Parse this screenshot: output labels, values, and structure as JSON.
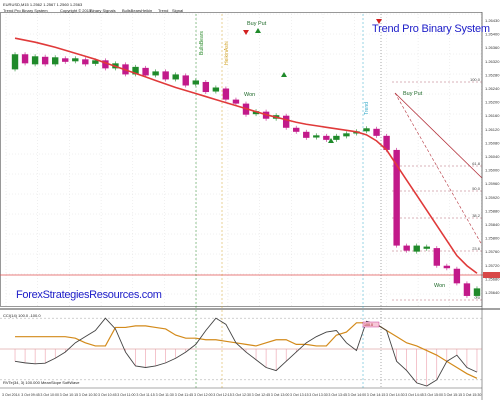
{
  "header": {
    "symbol_line": "EURUSD,M15 1.2562 1.2567 1.2560 1.2563",
    "info_line": "Trend Pro Binary System",
    "menu": [
      "Copyright © 2015",
      "Binary Signals",
      "BullsBearsHeikin",
      "Trend",
      "Signal",
      "Notes"
    ]
  },
  "title": "Trend Pro Binary System",
  "website": "ForexStrategiesResources.com",
  "annotations": {
    "buy_put_1": "Buy Put",
    "buy_put_2": "Buy Put",
    "won_1": "Won",
    "won_2": "Won",
    "signal_level": "100.0",
    "rsi_marker": "100.0"
  },
  "indicator": {
    "label": "CCI(14) 100.0 -100.0",
    "footer": "RVTe(34, 3) 100.000 MeanSlope SoftWave"
  },
  "price_axis": [
    "1.26430",
    "1.26400",
    "1.26360",
    "1.26320",
    "1.26280",
    "1.26240",
    "1.26200",
    "1.26160",
    "1.26120",
    "1.26080",
    "1.26040",
    "1.26000",
    "1.25960",
    "1.25920",
    "1.25880",
    "1.25840",
    "1.25800",
    "1.25760",
    "1.25720",
    "1.25680",
    "1.25640"
  ],
  "fib_levels": [
    "100.0",
    "61.8",
    "50.0",
    "38.2",
    "23.6",
    "0.0"
  ],
  "time_axis": [
    "3 Oct 2014",
    "3 Oct 09:45",
    "3 Oct 10:00",
    "3 Oct 10:15",
    "3 Oct 10:30",
    "3 Oct 10:45",
    "3 Oct 11:00",
    "3 Oct 11:15",
    "3 Oct 11:30",
    "3 Oct 11:45",
    "3 Oct 12:00",
    "3 Oct 12:15",
    "3 Oct 12:30",
    "3 Oct 12:45",
    "3 Oct 13:00",
    "3 Oct 13:15",
    "3 Oct 13:30",
    "3 Oct 13:45",
    "3 Oct 14:00",
    "3 Oct 14:15",
    "3 Oct 14:30",
    "3 Oct 14:45",
    "3 Oct 15:00",
    "3 Oct 15:15",
    "3 Oct 15:30"
  ],
  "colors": {
    "bull": "#1f8a2a",
    "bear": "#c21a8a",
    "ma": "#e03a3a",
    "trend": "#b4323c",
    "cci": "#d38a1a",
    "osc": "#444444",
    "title": "#1c1cc8",
    "grid": "#d8d8d8"
  },
  "chart_data": {
    "type": "candlestick",
    "candles": [
      {
        "o": 1.2633,
        "c": 1.2636,
        "dir": "up"
      },
      {
        "o": 1.2636,
        "c": 1.26342,
        "dir": "down"
      },
      {
        "o": 1.2634,
        "c": 1.26356,
        "dir": "up"
      },
      {
        "o": 1.26355,
        "c": 1.2634,
        "dir": "down"
      },
      {
        "o": 1.2634,
        "c": 1.26354,
        "dir": "up"
      },
      {
        "o": 1.26352,
        "c": 1.26345,
        "dir": "down"
      },
      {
        "o": 1.26346,
        "c": 1.26352,
        "dir": "up"
      },
      {
        "o": 1.2635,
        "c": 1.2634,
        "dir": "down"
      },
      {
        "o": 1.26341,
        "c": 1.26348,
        "dir": "up"
      },
      {
        "o": 1.26348,
        "c": 1.26332,
        "dir": "down"
      },
      {
        "o": 1.26332,
        "c": 1.26342,
        "dir": "up"
      },
      {
        "o": 1.2634,
        "c": 1.2632,
        "dir": "down"
      },
      {
        "o": 1.2632,
        "c": 1.26335,
        "dir": "up"
      },
      {
        "o": 1.26333,
        "c": 1.26318,
        "dir": "down"
      },
      {
        "o": 1.26318,
        "c": 1.26326,
        "dir": "up"
      },
      {
        "o": 1.26326,
        "c": 1.2631,
        "dir": "down"
      },
      {
        "o": 1.2631,
        "c": 1.2632,
        "dir": "up"
      },
      {
        "o": 1.26318,
        "c": 1.26298,
        "dir": "down"
      },
      {
        "o": 1.263,
        "c": 1.26308,
        "dir": "up"
      },
      {
        "o": 1.26305,
        "c": 1.26285,
        "dir": "down"
      },
      {
        "o": 1.26286,
        "c": 1.26294,
        "dir": "up"
      },
      {
        "o": 1.26292,
        "c": 1.2627,
        "dir": "down"
      },
      {
        "o": 1.2627,
        "c": 1.26262,
        "dir": "down"
      },
      {
        "o": 1.26262,
        "c": 1.2624,
        "dir": "down"
      },
      {
        "o": 1.26241,
        "c": 1.26247,
        "dir": "up"
      },
      {
        "o": 1.26246,
        "c": 1.26232,
        "dir": "down"
      },
      {
        "o": 1.26232,
        "c": 1.26239,
        "dir": "up"
      },
      {
        "o": 1.26238,
        "c": 1.26214,
        "dir": "down"
      },
      {
        "o": 1.26214,
        "c": 1.26206,
        "dir": "down"
      },
      {
        "o": 1.26206,
        "c": 1.26194,
        "dir": "down"
      },
      {
        "o": 1.26195,
        "c": 1.26199,
        "dir": "up"
      },
      {
        "o": 1.26198,
        "c": 1.2619,
        "dir": "down"
      },
      {
        "o": 1.2619,
        "c": 1.26198,
        "dir": "up"
      },
      {
        "o": 1.26197,
        "c": 1.26203,
        "dir": "up"
      },
      {
        "o": 1.26203,
        "c": 1.26207,
        "dir": "up"
      },
      {
        "o": 1.26207,
        "c": 1.26213,
        "dir": "up"
      },
      {
        "o": 1.26212,
        "c": 1.26198,
        "dir": "down"
      },
      {
        "o": 1.26198,
        "c": 1.2617,
        "dir": "down"
      },
      {
        "o": 1.2617,
        "c": 1.2598,
        "dir": "down"
      },
      {
        "o": 1.2598,
        "c": 1.2597,
        "dir": "down"
      },
      {
        "o": 1.25968,
        "c": 1.2598,
        "dir": "up"
      },
      {
        "o": 1.25978,
        "c": 1.25975,
        "dir": "up"
      },
      {
        "o": 1.25975,
        "c": 1.2594,
        "dir": "down"
      },
      {
        "o": 1.2594,
        "c": 1.25935,
        "dir": "down"
      },
      {
        "o": 1.25934,
        "c": 1.25905,
        "dir": "down"
      },
      {
        "o": 1.25905,
        "c": 1.2588,
        "dir": "down"
      },
      {
        "o": 1.2588,
        "c": 1.25895,
        "dir": "up"
      }
    ],
    "ma_line": [
      1.26392,
      1.26388,
      1.26384,
      1.26379,
      1.26374,
      1.26368,
      1.26362,
      1.26356,
      1.2635,
      1.26343,
      1.26336,
      1.26329,
      1.26322,
      1.26315,
      1.26308,
      1.26301,
      1.26294,
      1.26288,
      1.26282,
      1.26276,
      1.2627,
      1.26264,
      1.26258,
      1.26252,
      1.26246,
      1.2624,
      1.26235,
      1.2623,
      1.26225,
      1.26221,
      1.26218,
      1.26215,
      1.26212,
      1.26209,
      1.26206,
      1.262,
      1.26188,
      1.2617,
      1.2614,
      1.2611,
      1.2608,
      1.2605,
      1.2602,
      1.2599,
      1.2596,
      1.2594,
      1.25925
    ],
    "cci_values": [
      40,
      40,
      40,
      40,
      40,
      40,
      35,
      20,
      10,
      10,
      70,
      70,
      75,
      75,
      70,
      65,
      45,
      35,
      35,
      30,
      30,
      25,
      20,
      15,
      10,
      20,
      30,
      30,
      15,
      15,
      10,
      10,
      45,
      55,
      85,
      85,
      80,
      60,
      40,
      20,
      10,
      -5,
      -20,
      -40,
      -60,
      -80,
      -95
    ],
    "osc_values": [
      -40,
      -45,
      -48,
      -46,
      -30,
      -10,
      20,
      40,
      60,
      100,
      65,
      -10,
      -55,
      -60,
      -55,
      -45,
      -30,
      -10,
      15,
      60,
      100,
      80,
      20,
      -10,
      -35,
      -60,
      -70,
      -40,
      -10,
      20,
      40,
      55,
      60,
      20,
      -5,
      90,
      80,
      60,
      -40,
      -70,
      -110,
      -120,
      -100,
      -40,
      -20,
      -60,
      -75
    ]
  }
}
